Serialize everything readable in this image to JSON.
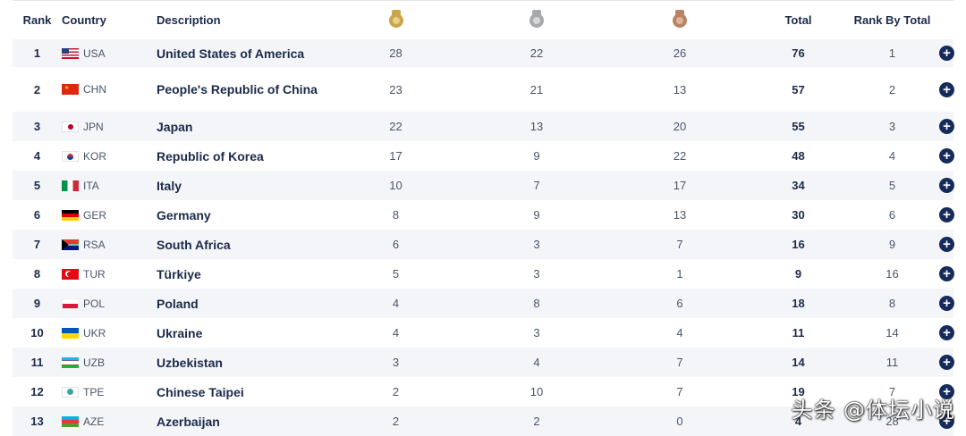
{
  "header": {
    "rank": "Rank",
    "country": "Country",
    "description": "Description",
    "gold_icon": "gold-medal-icon",
    "silver_icon": "silver-medal-icon",
    "bronze_icon": "bronze-medal-icon",
    "total": "Total",
    "rank_by_total": "Rank By Total"
  },
  "colors": {
    "navy": "#162b5a",
    "gold": "#c9a64a",
    "silver": "#a7a9ad",
    "bronze": "#b88466",
    "row_alt": "#f4f5f8"
  },
  "rows": [
    {
      "rank": "1",
      "code": "USA",
      "name": "United States of America",
      "gold": "28",
      "silver": "22",
      "bronze": "26",
      "total": "76",
      "rank_by_total": "1"
    },
    {
      "rank": "2",
      "code": "CHN",
      "name": "People's Republic of China",
      "gold": "23",
      "silver": "21",
      "bronze": "13",
      "total": "57",
      "rank_by_total": "2"
    },
    {
      "rank": "3",
      "code": "JPN",
      "name": "Japan",
      "gold": "22",
      "silver": "13",
      "bronze": "20",
      "total": "55",
      "rank_by_total": "3"
    },
    {
      "rank": "4",
      "code": "KOR",
      "name": "Republic of Korea",
      "gold": "17",
      "silver": "9",
      "bronze": "22",
      "total": "48",
      "rank_by_total": "4"
    },
    {
      "rank": "5",
      "code": "ITA",
      "name": "Italy",
      "gold": "10",
      "silver": "7",
      "bronze": "17",
      "total": "34",
      "rank_by_total": "5"
    },
    {
      "rank": "6",
      "code": "GER",
      "name": "Germany",
      "gold": "8",
      "silver": "9",
      "bronze": "13",
      "total": "30",
      "rank_by_total": "6"
    },
    {
      "rank": "7",
      "code": "RSA",
      "name": "South Africa",
      "gold": "6",
      "silver": "3",
      "bronze": "7",
      "total": "16",
      "rank_by_total": "9"
    },
    {
      "rank": "8",
      "code": "TUR",
      "name": "Türkiye",
      "gold": "5",
      "silver": "3",
      "bronze": "1",
      "total": "9",
      "rank_by_total": "16"
    },
    {
      "rank": "9",
      "code": "POL",
      "name": "Poland",
      "gold": "4",
      "silver": "8",
      "bronze": "6",
      "total": "18",
      "rank_by_total": "8"
    },
    {
      "rank": "10",
      "code": "UKR",
      "name": "Ukraine",
      "gold": "4",
      "silver": "3",
      "bronze": "4",
      "total": "11",
      "rank_by_total": "14"
    },
    {
      "rank": "11",
      "code": "UZB",
      "name": "Uzbekistan",
      "gold": "3",
      "silver": "4",
      "bronze": "7",
      "total": "14",
      "rank_by_total": "11"
    },
    {
      "rank": "12",
      "code": "TPE",
      "name": "Chinese Taipei",
      "gold": "2",
      "silver": "10",
      "bronze": "7",
      "total": "19",
      "rank_by_total": "7"
    },
    {
      "rank": "13",
      "code": "AZE",
      "name": "Azerbaijan",
      "gold": "2",
      "silver": "2",
      "bronze": "0",
      "total": "4",
      "rank_by_total": "28"
    }
  ],
  "expand_icon": "plus-circle-icon",
  "expand_symbol": "+",
  "watermark": "头条 @体坛小说"
}
